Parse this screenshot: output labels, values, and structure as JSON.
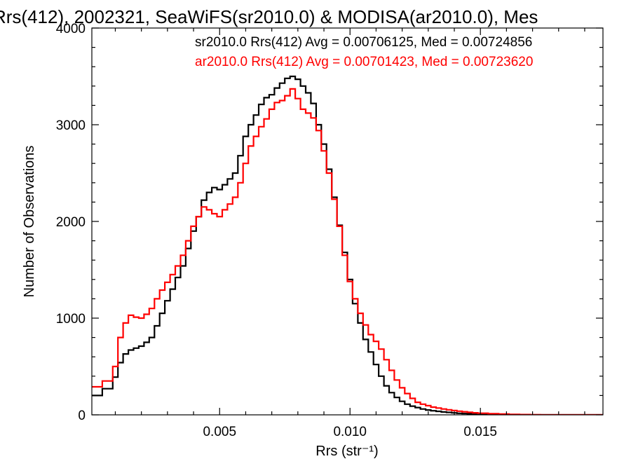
{
  "chart_data": {
    "type": "line",
    "title": "Rrs(412), 2002321, SeaWiFS(sr2010.0) & MODISA(ar2010.0), Mes",
    "xlabel": "Rrs (str⁻¹)",
    "ylabel": "Number of Observations",
    "xlim": [
      0.0001,
      0.0197
    ],
    "ylim": [
      0,
      4000
    ],
    "x_ticks": [
      0.005,
      0.01,
      0.015
    ],
    "x_tick_labels": [
      "0.005",
      "0.010",
      "0.015"
    ],
    "y_ticks": [
      0,
      1000,
      2000,
      3000,
      4000
    ],
    "y_tick_labels": [
      "0",
      "1000",
      "2000",
      "3000",
      "4000"
    ],
    "legend_position": "top-right",
    "grid": false,
    "series": [
      {
        "name": "sr2010.0 Rrs(412) Avg = 0.00706125, Med = 0.00724856",
        "color": "#000000",
        "x": [
          0.0001,
          0.0005,
          0.0009,
          0.0011,
          0.0013,
          0.0015,
          0.0017,
          0.0019,
          0.0021,
          0.0023,
          0.0025,
          0.0027,
          0.0029,
          0.0031,
          0.0033,
          0.0035,
          0.0037,
          0.0039,
          0.0041,
          0.0043,
          0.0045,
          0.0047,
          0.0049,
          0.0051,
          0.0053,
          0.0055,
          0.0057,
          0.0059,
          0.0061,
          0.0063,
          0.0065,
          0.0067,
          0.0069,
          0.0071,
          0.0073,
          0.0075,
          0.0077,
          0.0079,
          0.0081,
          0.0083,
          0.0085,
          0.0087,
          0.0089,
          0.0091,
          0.0093,
          0.0095,
          0.0097,
          0.0099,
          0.0101,
          0.0103,
          0.0105,
          0.0107,
          0.0109,
          0.0111,
          0.0113,
          0.0115,
          0.0117,
          0.0119,
          0.0121,
          0.0123,
          0.0125,
          0.0127,
          0.0129,
          0.0131,
          0.0133,
          0.0135,
          0.0137,
          0.0139,
          0.0141,
          0.0143,
          0.0145,
          0.0147,
          0.0149,
          0.0153,
          0.0157,
          0.0161,
          0.0165,
          0.0169,
          0.0173,
          0.0177,
          0.0181,
          0.0185,
          0.0189,
          0.0193,
          0.0197
        ],
        "values": [
          200,
          270,
          390,
          540,
          630,
          670,
          690,
          710,
          750,
          800,
          920,
          1050,
          1180,
          1300,
          1420,
          1540,
          1720,
          1900,
          2050,
          2220,
          2300,
          2350,
          2330,
          2380,
          2440,
          2500,
          2680,
          2880,
          3000,
          3100,
          3210,
          3280,
          3310,
          3380,
          3430,
          3480,
          3500,
          3470,
          3400,
          3330,
          3220,
          3000,
          2800,
          2540,
          2250,
          1960,
          1680,
          1400,
          1150,
          950,
          780,
          650,
          520,
          400,
          300,
          230,
          180,
          140,
          110,
          90,
          75,
          60,
          50,
          42,
          36,
          30,
          25,
          20,
          16,
          13,
          10,
          8,
          6,
          4,
          3,
          2,
          1,
          0,
          0,
          0,
          0,
          0,
          0,
          0,
          0
        ]
      },
      {
        "name": "ar2010.0 Rrs(412) Avg = 0.00701423, Med = 0.00723620",
        "color": "#ff0000",
        "x": [
          0.0001,
          0.0005,
          0.0009,
          0.0011,
          0.0013,
          0.0015,
          0.0017,
          0.0019,
          0.0021,
          0.0023,
          0.0025,
          0.0027,
          0.0029,
          0.0031,
          0.0033,
          0.0035,
          0.0037,
          0.0039,
          0.0041,
          0.0043,
          0.0045,
          0.0047,
          0.0049,
          0.0051,
          0.0053,
          0.0055,
          0.0057,
          0.0059,
          0.0061,
          0.0063,
          0.0065,
          0.0067,
          0.0069,
          0.0071,
          0.0073,
          0.0075,
          0.0077,
          0.0079,
          0.0081,
          0.0083,
          0.0085,
          0.0087,
          0.0089,
          0.0091,
          0.0093,
          0.0095,
          0.0097,
          0.0099,
          0.0101,
          0.0103,
          0.0105,
          0.0107,
          0.0109,
          0.0111,
          0.0113,
          0.0115,
          0.0117,
          0.0119,
          0.0121,
          0.0123,
          0.0125,
          0.0127,
          0.0129,
          0.0131,
          0.0133,
          0.0135,
          0.0137,
          0.0139,
          0.0141,
          0.0143,
          0.0145,
          0.0147,
          0.0149,
          0.0153,
          0.0157,
          0.0161,
          0.0165,
          0.0169,
          0.0173,
          0.0177,
          0.0181,
          0.0185,
          0.0189,
          0.0193,
          0.0197
        ],
        "values": [
          290,
          350,
          500,
          800,
          950,
          1030,
          1010,
          1000,
          1040,
          1100,
          1200,
          1290,
          1370,
          1450,
          1540,
          1650,
          1800,
          1950,
          2050,
          2150,
          2120,
          2080,
          2050,
          2120,
          2180,
          2250,
          2400,
          2600,
          2780,
          2880,
          2980,
          3060,
          3160,
          3230,
          3250,
          3300,
          3370,
          3270,
          3160,
          3120,
          3070,
          2940,
          2730,
          2500,
          2230,
          1950,
          1650,
          1380,
          1200,
          1050,
          930,
          830,
          760,
          680,
          570,
          460,
          360,
          280,
          220,
          170,
          130,
          110,
          95,
          80,
          70,
          60,
          52,
          45,
          38,
          32,
          26,
          21,
          17,
          12,
          8,
          5,
          3,
          1,
          0,
          0,
          0,
          0,
          0,
          0,
          0
        ]
      }
    ]
  }
}
